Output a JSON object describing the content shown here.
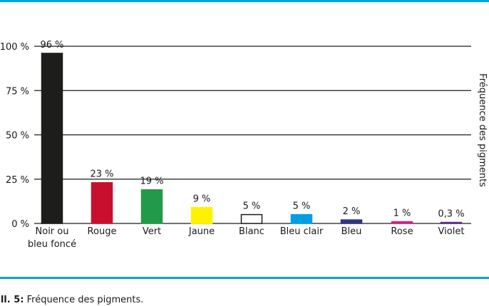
{
  "caption": {
    "label": "Ill. 5:",
    "text": "Fréquence des pigments."
  },
  "chart_data": {
    "type": "bar",
    "title": "",
    "xlabel": "",
    "ylabel": "Fréquence des pigments",
    "ylim": [
      0,
      100
    ],
    "yticks": [
      "0 %",
      "25 %",
      "50 %",
      "75 %",
      "100 %"
    ],
    "ytick_values": [
      0,
      25,
      50,
      75,
      100
    ],
    "grid": true,
    "categories": [
      "Noir ou\nbleu foncé",
      "Rouge",
      "Vert",
      "Jaune",
      "Blanc",
      "Bleu clair",
      "Bleu",
      "Rose",
      "Violet"
    ],
    "values": [
      96,
      23,
      19,
      9,
      5,
      5,
      2,
      1,
      0.3
    ],
    "value_labels": [
      "96 %",
      "23 %",
      "19 %",
      "9 %",
      "5 %",
      "5 %",
      "2 %",
      "1 %",
      "0,3 %"
    ],
    "colors": [
      "#1d1d1b",
      "#c8102e",
      "#23994a",
      "#fff200",
      "#ffffff",
      "#009fe3",
      "#2e3583",
      "#d4217e",
      "#5b2a86"
    ],
    "outline_colors": [
      "#1d1d1b",
      "#c8102e",
      "#23994a",
      "#fff200",
      "#1d1d1b",
      "#009fe3",
      "#2e3583",
      "#d4217e",
      "#5b2a86"
    ]
  }
}
